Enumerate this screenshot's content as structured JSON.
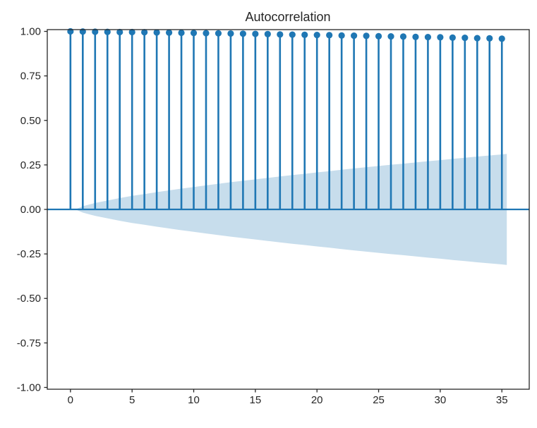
{
  "chart_data": {
    "type": "stem",
    "title": "Autocorrelation",
    "xlabel": "",
    "ylabel": "",
    "x": [
      0,
      1,
      2,
      3,
      4,
      5,
      6,
      7,
      8,
      9,
      10,
      11,
      12,
      13,
      14,
      15,
      16,
      17,
      18,
      19,
      20,
      21,
      22,
      23,
      24,
      25,
      26,
      27,
      28,
      29,
      30,
      31,
      32,
      33,
      34,
      35
    ],
    "values": [
      1.0,
      0.999,
      0.998,
      0.997,
      0.996,
      0.996,
      0.995,
      0.994,
      0.993,
      0.992,
      0.991,
      0.99,
      0.989,
      0.988,
      0.987,
      0.986,
      0.985,
      0.983,
      0.982,
      0.981,
      0.98,
      0.979,
      0.977,
      0.976,
      0.975,
      0.973,
      0.972,
      0.971,
      0.969,
      0.968,
      0.967,
      0.965,
      0.964,
      0.962,
      0.961,
      0.959
    ],
    "confidence_band": {
      "x": [
        0.4,
        1,
        2,
        3,
        4,
        5,
        6,
        7,
        8,
        9,
        10,
        11,
        12,
        13,
        14,
        15,
        16,
        17,
        18,
        19,
        20,
        21,
        22,
        23,
        24,
        25,
        26,
        27,
        28,
        29,
        30,
        31,
        32,
        33,
        34,
        35,
        35.4
      ],
      "half_width": [
        0,
        0.018,
        0.036,
        0.05,
        0.064,
        0.076,
        0.086,
        0.097,
        0.107,
        0.117,
        0.126,
        0.135,
        0.144,
        0.153,
        0.161,
        0.169,
        0.177,
        0.185,
        0.193,
        0.2,
        0.208,
        0.215,
        0.223,
        0.23,
        0.237,
        0.244,
        0.251,
        0.257,
        0.264,
        0.271,
        0.277,
        0.284,
        0.29,
        0.297,
        0.303,
        0.309,
        0.312
      ]
    },
    "x_ticks": {
      "values": [
        0,
        5,
        10,
        15,
        20,
        25,
        30,
        35
      ],
      "labels": [
        "0",
        "5",
        "10",
        "15",
        "20",
        "25",
        "30",
        "35"
      ]
    },
    "y_ticks": {
      "values": [
        1.0,
        0.75,
        0.5,
        0.25,
        0.0,
        -0.25,
        -0.5,
        -0.75,
        -1.0
      ],
      "labels": [
        "1.00",
        "0.75",
        "0.50",
        "0.25",
        "0.00",
        "-0.25",
        "-0.50",
        "-0.75",
        "-1.00"
      ]
    },
    "xlim": [
      -1.88,
      37.22
    ],
    "ylim": [
      -1.01,
      1.01
    ],
    "grid": false,
    "legend": null,
    "colors": {
      "stem": "#1f77b4",
      "marker": "#1f77b4",
      "zero_line": "#1f77b4",
      "band": "#1f77b4",
      "band_opacity": 0.25,
      "frame": "#262626",
      "text": "#262626",
      "background": "#ffffff"
    }
  }
}
